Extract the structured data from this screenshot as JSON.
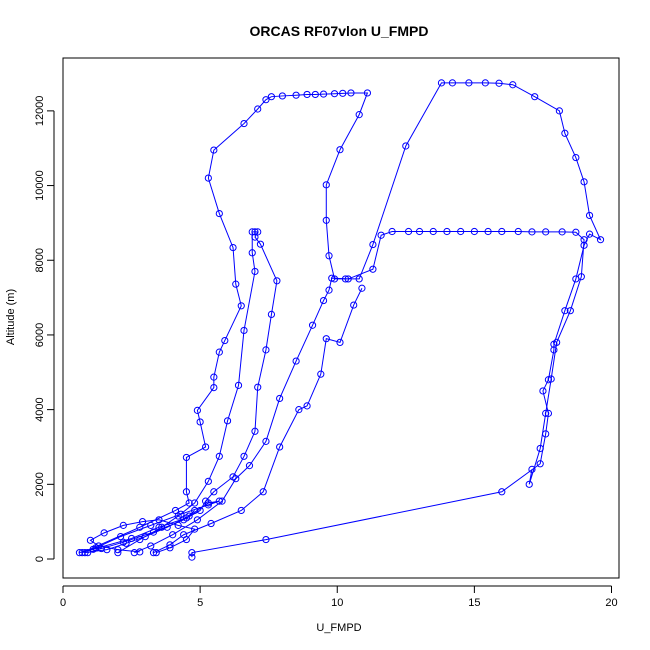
{
  "chart_data": {
    "type": "line",
    "title": "ORCAS RF07vlon U_FMPD",
    "xlabel": "U_FMPD",
    "ylabel": "Altitude (m)",
    "xlim": [
      0,
      20
    ],
    "ylim": [
      0,
      12800
    ],
    "x_ticks": [
      0,
      5,
      10,
      15,
      20
    ],
    "y_ticks": [
      0,
      2000,
      4000,
      6000,
      8000,
      10000,
      12000
    ],
    "x_tick_labels": [
      "0",
      "5",
      "10",
      "15",
      "20"
    ],
    "y_tick_labels": [
      "0",
      "2000",
      "4000",
      "6000",
      "8000",
      "10000",
      "12000"
    ],
    "colors": {
      "series": "#0000ff",
      "axis": "#000000",
      "background": "#ffffff"
    },
    "series": [
      {
        "points": [
          [
            4.7,
            50
          ],
          [
            4.7,
            170
          ],
          [
            7.4,
            520
          ],
          [
            16.0,
            1800
          ],
          [
            17.4,
            2550
          ],
          [
            17.6,
            3350
          ],
          [
            17.7,
            3900
          ],
          [
            17.5,
            4500
          ],
          [
            17.7,
            4800
          ],
          [
            17.9,
            5600
          ],
          [
            17.9,
            5750
          ],
          [
            18.3,
            6650
          ],
          [
            18.7,
            7500
          ],
          [
            19.0,
            8400
          ],
          [
            19.2,
            8700
          ],
          [
            19.6,
            8550
          ],
          [
            19.2,
            9200
          ],
          [
            19.0,
            10100
          ],
          [
            18.7,
            10750
          ],
          [
            18.3,
            11400
          ],
          [
            18.1,
            12000
          ],
          [
            17.2,
            12380
          ],
          [
            16.4,
            12700
          ],
          [
            15.9,
            12740
          ],
          [
            15.4,
            12750
          ],
          [
            14.8,
            12750
          ],
          [
            14.2,
            12750
          ],
          [
            13.8,
            12750
          ],
          [
            12.5,
            11060
          ],
          [
            11.3,
            8420
          ],
          [
            10.8,
            7500
          ],
          [
            10.3,
            7500
          ],
          [
            9.9,
            7500
          ],
          [
            9.7,
            8120
          ],
          [
            9.6,
            9070
          ],
          [
            9.6,
            10020
          ],
          [
            10.1,
            10960
          ],
          [
            10.8,
            11900
          ],
          [
            11.1,
            12480
          ],
          [
            10.5,
            12480
          ],
          [
            10.2,
            12470
          ],
          [
            9.9,
            12460
          ],
          [
            9.5,
            12450
          ],
          [
            9.2,
            12440
          ],
          [
            8.9,
            12440
          ],
          [
            8.5,
            12420
          ],
          [
            8.0,
            12400
          ],
          [
            7.6,
            12380
          ],
          [
            7.4,
            12300
          ],
          [
            7.1,
            12050
          ],
          [
            6.6,
            11660
          ],
          [
            5.5,
            10950
          ],
          [
            5.3,
            10200
          ],
          [
            5.7,
            9250
          ],
          [
            6.2,
            8340
          ],
          [
            6.3,
            7360
          ],
          [
            6.5,
            6780
          ],
          [
            5.9,
            5850
          ],
          [
            5.7,
            5540
          ],
          [
            5.5,
            4870
          ],
          [
            5.5,
            4590
          ],
          [
            4.9,
            3980
          ],
          [
            5.0,
            3670
          ],
          [
            5.2,
            3000
          ],
          [
            4.5,
            2720
          ],
          [
            4.5,
            1800
          ],
          [
            4.6,
            1500
          ],
          [
            4.1,
            1300
          ],
          [
            2.8,
            850
          ],
          [
            0.7,
            170
          ],
          [
            1.1,
            260
          ],
          [
            2.5,
            550
          ],
          [
            3.5,
            850
          ],
          [
            4.5,
            1100
          ],
          [
            4.8,
            1300
          ]
        ]
      },
      {
        "points": [
          [
            0.9,
            170
          ],
          [
            1.4,
            280
          ],
          [
            2.2,
            450
          ],
          [
            3.3,
            720
          ],
          [
            4.4,
            1050
          ],
          [
            5.0,
            1300
          ],
          [
            5.2,
            1550
          ],
          [
            5.5,
            1800
          ],
          [
            6.2,
            2200
          ],
          [
            6.6,
            2750
          ],
          [
            7.0,
            3420
          ],
          [
            7.1,
            4600
          ],
          [
            7.4,
            5600
          ],
          [
            7.6,
            6550
          ],
          [
            7.8,
            7450
          ],
          [
            7.2,
            8430
          ],
          [
            7.0,
            8620
          ],
          [
            7.1,
            8760
          ],
          [
            7.0,
            8760
          ],
          [
            6.9,
            8760
          ],
          [
            6.9,
            8200
          ],
          [
            7.0,
            7700
          ],
          [
            6.6,
            6120
          ],
          [
            6.4,
            4650
          ],
          [
            6.0,
            3700
          ],
          [
            5.7,
            2750
          ],
          [
            5.3,
            2080
          ],
          [
            4.8,
            1500
          ],
          [
            4.2,
            1150
          ],
          [
            3.6,
            850
          ],
          [
            2.8,
            520
          ],
          [
            2.0,
            170
          ]
        ]
      },
      {
        "points": [
          [
            2.6,
            170
          ],
          [
            3.2,
            350
          ],
          [
            4.0,
            650
          ],
          [
            4.9,
            1050
          ],
          [
            5.8,
            1550
          ],
          [
            6.3,
            2150
          ],
          [
            6.8,
            2500
          ],
          [
            7.4,
            3150
          ],
          [
            7.9,
            4300
          ],
          [
            8.5,
            5300
          ],
          [
            9.1,
            6260
          ],
          [
            9.5,
            6920
          ],
          [
            9.7,
            7200
          ],
          [
            9.8,
            7520
          ],
          [
            10.4,
            7500
          ],
          [
            11.3,
            7760
          ],
          [
            11.6,
            8670
          ],
          [
            12.0,
            8770
          ],
          [
            12.6,
            8770
          ],
          [
            13.0,
            8770
          ],
          [
            13.5,
            8770
          ],
          [
            14.0,
            8770
          ],
          [
            14.5,
            8770
          ],
          [
            15.0,
            8770
          ],
          [
            15.5,
            8770
          ],
          [
            16.0,
            8770
          ],
          [
            16.6,
            8770
          ],
          [
            17.1,
            8760
          ],
          [
            17.6,
            8760
          ],
          [
            18.2,
            8760
          ],
          [
            18.7,
            8750
          ],
          [
            19.0,
            8550
          ],
          [
            18.9,
            7560
          ],
          [
            18.5,
            6650
          ],
          [
            18.0,
            5800
          ],
          [
            17.8,
            4820
          ],
          [
            17.6,
            3900
          ],
          [
            17.4,
            2960
          ],
          [
            17.0,
            2000
          ],
          [
            17.1,
            2400
          ]
        ]
      },
      {
        "points": [
          [
            3.3,
            170
          ],
          [
            3.9,
            380
          ],
          [
            4.4,
            650
          ],
          [
            5.4,
            950
          ],
          [
            6.5,
            1300
          ],
          [
            7.3,
            1800
          ],
          [
            7.9,
            3000
          ],
          [
            8.6,
            4000
          ],
          [
            8.9,
            4100
          ],
          [
            9.4,
            4950
          ],
          [
            9.6,
            5900
          ],
          [
            10.1,
            5800
          ],
          [
            10.6,
            6800
          ],
          [
            10.9,
            7250
          ]
        ]
      },
      {
        "points": [
          [
            0.8,
            170
          ],
          [
            1.6,
            250
          ],
          [
            2.3,
            420
          ],
          [
            3.0,
            600
          ],
          [
            3.8,
            850
          ],
          [
            4.6,
            1150
          ],
          [
            5.3,
            1500
          ],
          [
            5.7,
            1550
          ],
          [
            5.3,
            1450
          ],
          [
            4.3,
            1200
          ],
          [
            3.2,
            900
          ],
          [
            2.1,
            600
          ],
          [
            1.2,
            300
          ],
          [
            0.6,
            170
          ]
        ]
      },
      {
        "points": [
          [
            3.4,
            170
          ],
          [
            3.9,
            300
          ],
          [
            4.5,
            520
          ],
          [
            4.8,
            800
          ],
          [
            4.2,
            900
          ],
          [
            3.5,
            1050
          ],
          [
            2.9,
            1000
          ],
          [
            2.2,
            900
          ],
          [
            1.5,
            700
          ],
          [
            1.0,
            500
          ],
          [
            1.3,
            350
          ],
          [
            2.0,
            250
          ],
          [
            2.8,
            190
          ]
        ]
      }
    ]
  }
}
